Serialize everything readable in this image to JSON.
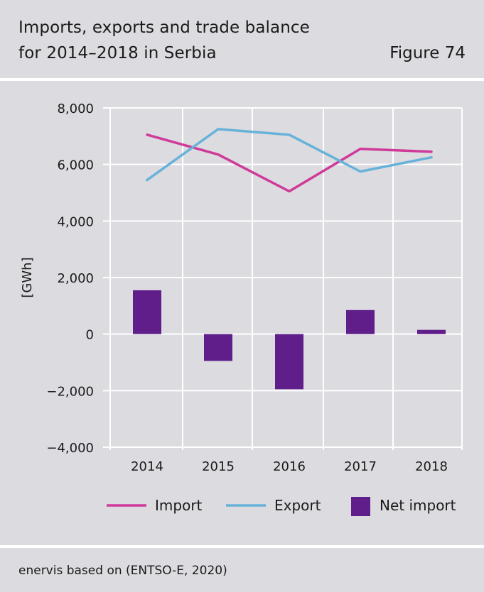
{
  "header": {
    "title_line1": "Imports, exports and trade balance",
    "title_line2": "for 2014–2018 in Serbia",
    "figure_label": "Figure 74"
  },
  "footer": {
    "source": "enervis based on (ENTSO-E, 2020)"
  },
  "colors": {
    "import": "#cf3a99",
    "export": "#67b2d9",
    "net_import": "#5f1e8a",
    "gridline": "#ffffff",
    "background": "#dcdbe0"
  },
  "chart_data": {
    "type": "bar",
    "categories": [
      "2014",
      "2015",
      "2016",
      "2017",
      "2018"
    ],
    "ylabel": "[GWh]",
    "ylim": [
      -4000,
      8000
    ],
    "yticks": [
      8000,
      6000,
      4000,
      2000,
      0,
      -2000,
      -4000
    ],
    "ytick_labels": [
      "8,000",
      "6,000",
      "4,000",
      "2,000",
      "0",
      "−2,000",
      "−4,000"
    ],
    "grid": true,
    "legend_position": "bottom",
    "series": [
      {
        "name": "Import",
        "kind": "line",
        "values": [
          7050,
          6350,
          5050,
          6550,
          6450
        ]
      },
      {
        "name": "Export",
        "kind": "line",
        "values": [
          5450,
          7250,
          7050,
          5750,
          6250
        ]
      },
      {
        "name": "Net import",
        "kind": "bar",
        "values": [
          1550,
          -950,
          -1950,
          850,
          150
        ]
      }
    ]
  }
}
